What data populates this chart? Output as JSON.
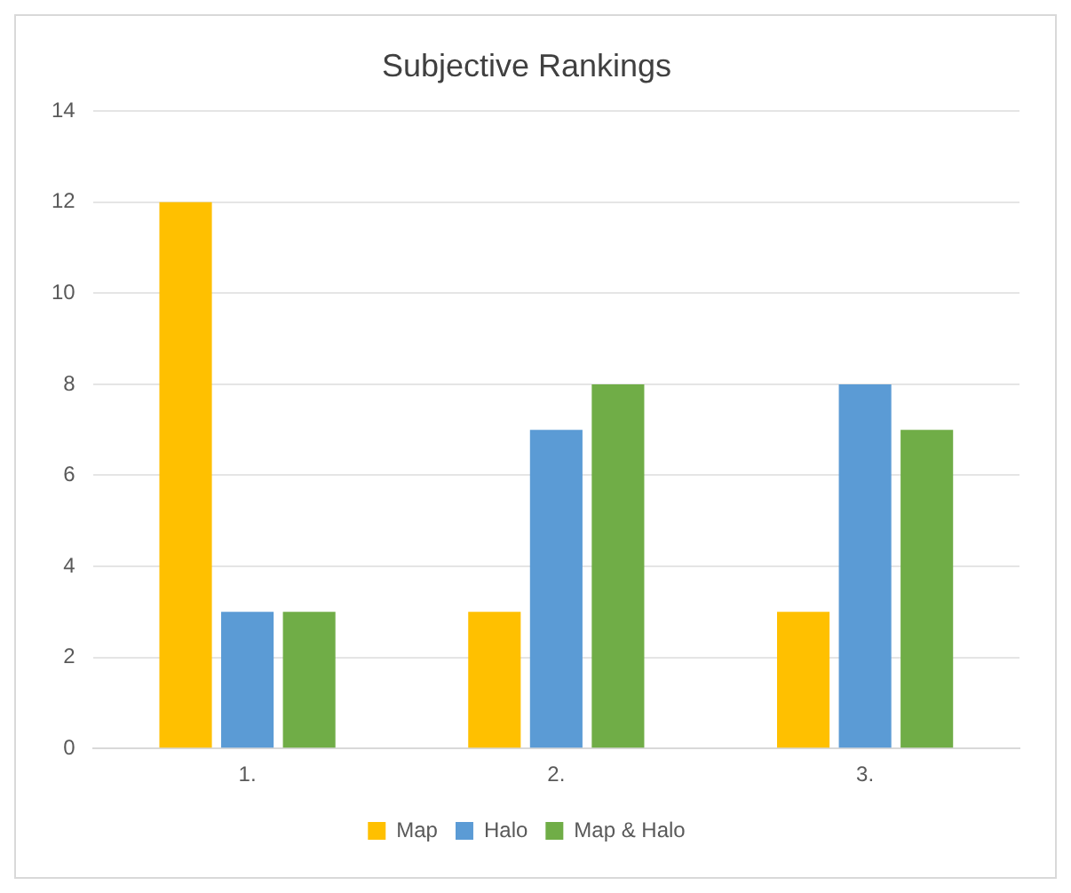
{
  "chart_data": {
    "type": "bar",
    "title": "Subjective Rankings",
    "categories": [
      "1.",
      "2.",
      "3."
    ],
    "series": [
      {
        "name": "Map",
        "color": "#ffc000",
        "values": [
          12,
          3,
          3
        ]
      },
      {
        "name": "Halo",
        "color": "#5b9bd5",
        "values": [
          3,
          7,
          8
        ]
      },
      {
        "name": "Map & Halo",
        "color": "#70ad47",
        "values": [
          3,
          8,
          7
        ]
      }
    ],
    "ylim": [
      0,
      14
    ],
    "yticks": [
      0,
      2,
      4,
      6,
      8,
      10,
      12,
      14
    ],
    "grid": "y",
    "legend": "bottom"
  }
}
